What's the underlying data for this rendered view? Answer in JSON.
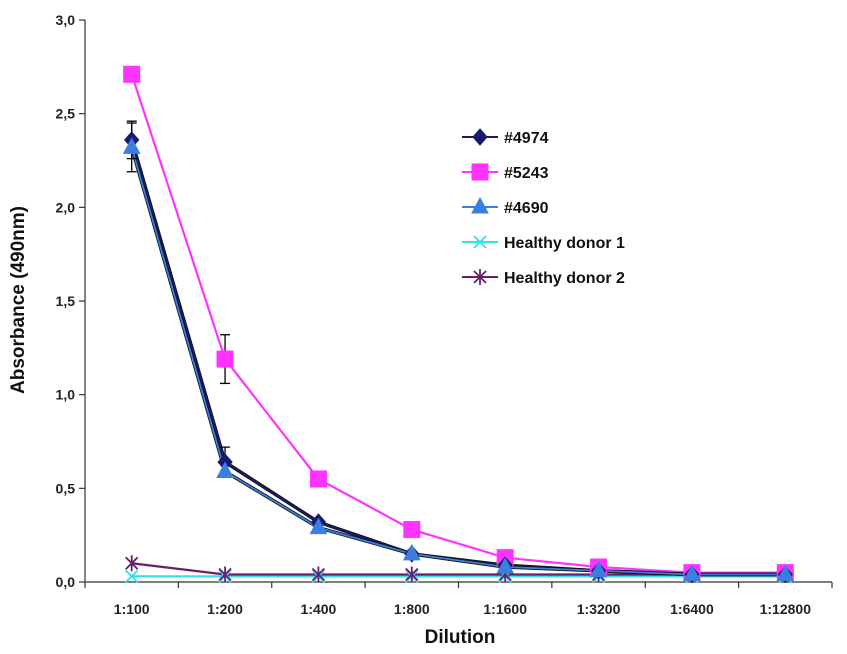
{
  "chart_data": {
    "type": "line",
    "title": "",
    "xlabel": "Dilution",
    "ylabel": "Absorbance (490nm)",
    "categories": [
      "1:100",
      "1:200",
      "1:400",
      "1:800",
      "1:1600",
      "1:3200",
      "1:6400",
      "1:12800"
    ],
    "ylim": [
      0,
      3.0
    ],
    "yticks": [
      0,
      0.5,
      1.0,
      1.5,
      2.0,
      2.5,
      3.0
    ],
    "ytick_labels": [
      "0,0",
      "0,5",
      "1,0",
      "1,5",
      "2,0",
      "2,5",
      "3,0"
    ],
    "grid": false,
    "legend_position": "right",
    "series": [
      {
        "name": "#4974",
        "color": "#1a1a6e",
        "marker": "diamond",
        "values": [
          2.36,
          0.64,
          0.32,
          0.15,
          0.09,
          0.06,
          0.04,
          0.04
        ],
        "error": [
          0.1,
          0.08,
          0,
          0,
          0,
          0,
          0,
          0
        ]
      },
      {
        "name": "#5243",
        "color": "#ff33ff",
        "marker": "square",
        "values": [
          2.71,
          1.19,
          0.55,
          0.28,
          0.13,
          0.08,
          0.05,
          0.05
        ],
        "error": [
          0,
          0.13,
          0,
          0,
          0,
          0,
          0,
          0
        ]
      },
      {
        "name": "#4690",
        "color": "#3a7fe0",
        "marker": "triangle",
        "values": [
          2.32,
          0.59,
          0.29,
          0.15,
          0.08,
          0.06,
          0.04,
          0.04
        ],
        "error": [
          0.13,
          0,
          0,
          0,
          0,
          0,
          0,
          0
        ]
      },
      {
        "name": "Healthy donor 1",
        "color": "#33e0f0",
        "marker": "x",
        "values": [
          0.03,
          0.03,
          0.03,
          0.03,
          0.03,
          0.03,
          0.03,
          0.03
        ],
        "error": [
          0,
          0,
          0,
          0,
          0,
          0,
          0,
          0
        ]
      },
      {
        "name": "Healthy donor 2",
        "color": "#6b1f6b",
        "marker": "star",
        "values": [
          0.1,
          0.04,
          0.04,
          0.04,
          0.04,
          0.04,
          0.04,
          0.04
        ],
        "error": [
          0,
          0,
          0,
          0,
          0,
          0,
          0,
          0
        ]
      }
    ]
  }
}
